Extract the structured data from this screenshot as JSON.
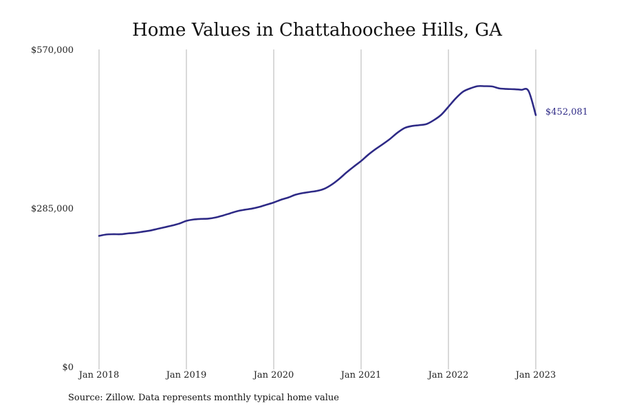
{
  "chart_data": {
    "type": "line",
    "title": "Home Values in Chattahoochee Hills, GA",
    "source": "Source: Zillow. Data represents monthly typical home value",
    "ylim": [
      0,
      570000
    ],
    "y_ticks": [
      {
        "value": 0,
        "label": "$0"
      },
      {
        "value": 285000,
        "label": "$285,000"
      },
      {
        "value": 570000,
        "label": "$570,000"
      }
    ],
    "x_ticks": [
      {
        "value": "2018-01",
        "label": "Jan 2018"
      },
      {
        "value": "2019-01",
        "label": "Jan 2019"
      },
      {
        "value": "2020-01",
        "label": "Jan 2020"
      },
      {
        "value": "2021-01",
        "label": "Jan 2021"
      },
      {
        "value": "2022-01",
        "label": "Jan 2022"
      },
      {
        "value": "2023-01",
        "label": "Jan 2023"
      }
    ],
    "xlim": [
      "2018-01",
      "2023-01"
    ],
    "grid": "vertical",
    "line_color": "#2e2a86",
    "end_label": "$452,081",
    "series": [
      {
        "x": [
          "2018-01",
          "2018-02",
          "2018-03",
          "2018-04",
          "2018-05",
          "2018-06",
          "2018-07",
          "2018-08",
          "2018-09",
          "2018-10",
          "2018-11",
          "2018-12",
          "2019-01",
          "2019-02",
          "2019-03",
          "2019-04",
          "2019-05",
          "2019-06",
          "2019-07",
          "2019-08",
          "2019-09",
          "2019-10",
          "2019-11",
          "2019-12",
          "2020-01",
          "2020-02",
          "2020-03",
          "2020-04",
          "2020-05",
          "2020-06",
          "2020-07",
          "2020-08",
          "2020-09",
          "2020-10",
          "2020-11",
          "2020-12",
          "2021-01",
          "2021-02",
          "2021-03",
          "2021-04",
          "2021-05",
          "2021-06",
          "2021-07",
          "2021-08",
          "2021-09",
          "2021-10",
          "2021-11",
          "2021-12",
          "2022-01",
          "2022-02",
          "2022-03",
          "2022-04",
          "2022-05",
          "2022-06",
          "2022-07",
          "2022-08",
          "2022-09",
          "2022-10",
          "2022-11",
          "2022-12",
          "2023-01"
        ],
        "values": [
          235000,
          237500,
          238000,
          238000,
          239500,
          240500,
          242500,
          244500,
          247500,
          250500,
          253500,
          257000,
          262000,
          264500,
          265500,
          266000,
          268000,
          271500,
          275500,
          279500,
          282000,
          284000,
          287000,
          291000,
          295000,
          300000,
          304000,
          309000,
          312000,
          314000,
          316000,
          320000,
          327500,
          337500,
          349000,
          359500,
          369500,
          381000,
          391000,
          400000,
          409500,
          420500,
          429000,
          432500,
          434000,
          436000,
          443000,
          452500,
          467000,
          482000,
          494000,
          500000,
          504000,
          504000,
          503500,
          500000,
          499000,
          498500,
          497500,
          495500,
          452081
        ]
      }
    ]
  }
}
